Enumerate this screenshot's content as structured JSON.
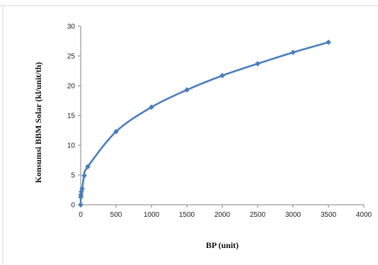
{
  "chart_data": {
    "type": "line",
    "title": "",
    "xlabel": "BP (unit)",
    "ylabel": "Konsumsi BBM Solar (kl/unit/th)",
    "xlim": [
      0,
      4000
    ],
    "ylim": [
      0,
      30
    ],
    "xticks": [
      0,
      500,
      1000,
      1500,
      2000,
      2500,
      3000,
      3500,
      4000
    ],
    "yticks": [
      0,
      5,
      10,
      15,
      20,
      25,
      30
    ],
    "grid": false,
    "legend": "none",
    "series": [
      {
        "color": "#4a7ebb",
        "marker": "diamond",
        "smooth": true,
        "x": [
          0,
          2,
          5,
          10,
          20,
          50,
          100,
          500,
          1000,
          1500,
          2000,
          2500,
          3000,
          3500
        ],
        "y": [
          0,
          1.3,
          1.7,
          2.2,
          2.7,
          4.9,
          6.4,
          12.3,
          16.4,
          19.3,
          21.7,
          23.7,
          25.6,
          27.3
        ]
      }
    ]
  }
}
